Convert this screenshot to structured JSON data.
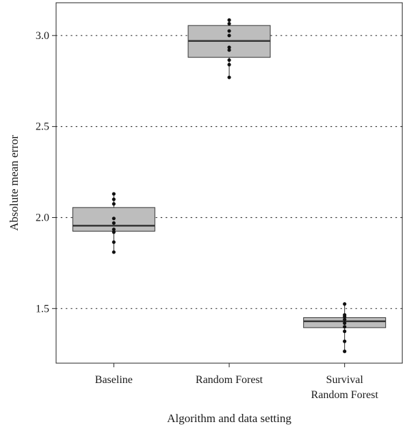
{
  "chart_data": {
    "type": "box",
    "xlabel": "Algorithm and data setting",
    "ylabel": "Absolute mean error",
    "ylim": [
      1.2,
      3.18
    ],
    "yticks": [
      1.5,
      2.0,
      2.5,
      3.0
    ],
    "ytick_labels": [
      "1.5",
      "2.0",
      "2.5",
      "3.0"
    ],
    "grid": "horizontal dotted at y ticks",
    "box_color": "#bdbdbd",
    "categories": [
      {
        "lines": [
          "Baseline"
        ],
        "q1": 1.925,
        "median": 1.955,
        "q3": 2.055,
        "whisker_low": 1.81,
        "whisker_high": 2.13,
        "points": [
          1.81,
          1.865,
          1.92,
          1.935,
          1.97,
          1.995,
          2.075,
          2.1,
          2.13
        ]
      },
      {
        "lines": [
          "Random Forest"
        ],
        "q1": 2.88,
        "median": 2.97,
        "q3": 3.055,
        "whisker_low": 2.77,
        "whisker_high": 3.085,
        "points": [
          2.77,
          2.84,
          2.865,
          2.92,
          2.935,
          3.0,
          3.025,
          3.065,
          3.085
        ]
      },
      {
        "lines": [
          "Survival",
          "Random Forest"
        ],
        "q1": 1.395,
        "median": 1.43,
        "q3": 1.45,
        "whisker_low": 1.265,
        "whisker_high": 1.525,
        "points": [
          1.265,
          1.32,
          1.375,
          1.4,
          1.42,
          1.44,
          1.455,
          1.465,
          1.525
        ]
      }
    ]
  }
}
